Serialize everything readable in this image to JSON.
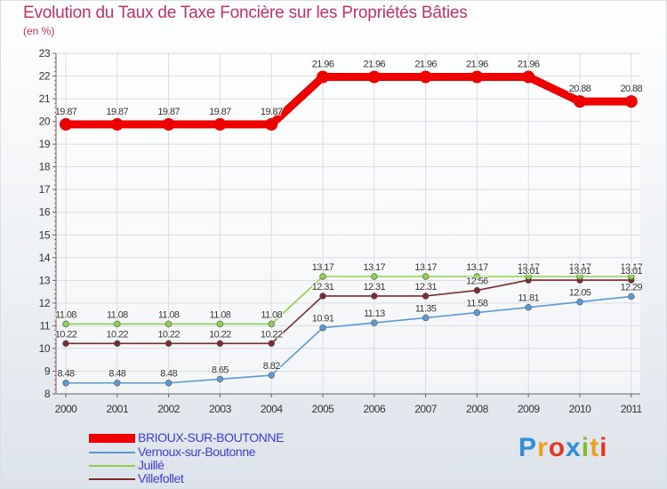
{
  "title": "Evolution du Taux de Taxe Foncière sur les Propriétés Bâties",
  "unit": "(en %)",
  "logo_text": "Proxiti",
  "colors": {
    "title": "#c0306a",
    "legend_text": "#3d3dd0",
    "axis": "#666666",
    "grid": "#d8dde3"
  },
  "chart_data": {
    "type": "line",
    "title": "Evolution du Taux de Taxe Foncière sur les Propriétés Bâties",
    "ylabel": "(en %)",
    "xlabel": "",
    "ylim": [
      8,
      23
    ],
    "yticks": [
      "8",
      "9",
      "10",
      "11",
      "12",
      "13",
      "14",
      "15",
      "16",
      "17",
      "18",
      "19",
      "20",
      "21",
      "22",
      "23"
    ],
    "categories": [
      "2000",
      "2001",
      "2002",
      "2003",
      "2004",
      "2005",
      "2006",
      "2007",
      "2008",
      "2009",
      "2010",
      "2011"
    ],
    "series": [
      {
        "name": "BRIOUX-SUR-BOUTONNE",
        "color": "#ee0000",
        "values": [
          19.87,
          19.87,
          19.87,
          19.87,
          19.87,
          21.96,
          21.96,
          21.96,
          21.96,
          21.96,
          20.88,
          20.88
        ],
        "labels": [
          "19.87",
          "19.87",
          "19.87",
          "19.87",
          "19.87",
          "21.96",
          "21.96",
          "21.96",
          "21.96",
          "21.96",
          "20.88",
          "20.88"
        ],
        "emphasis": true
      },
      {
        "name": "Vernoux-sur-Boutonne",
        "color": "#5b9bd5",
        "values": [
          8.48,
          8.48,
          8.48,
          8.65,
          8.82,
          10.91,
          11.13,
          11.35,
          11.58,
          11.81,
          12.05,
          12.29
        ],
        "labels": [
          "8.48",
          "8.48",
          "8.48",
          "8.65",
          "8.82",
          "10.91",
          "11.13",
          "11.35",
          "11.58",
          "11.81",
          "12.05",
          "12.29"
        ]
      },
      {
        "name": "Juillé",
        "color": "#8fd14f",
        "values": [
          11.08,
          11.08,
          11.08,
          11.08,
          11.08,
          13.17,
          13.17,
          13.17,
          13.17,
          13.17,
          13.17,
          13.17
        ],
        "labels": [
          "11.08",
          "11.08",
          "11.08",
          "11.08",
          "11.08",
          "13.17",
          "13.17",
          "13.17",
          "13.17",
          "13.17",
          "13.17",
          "13.17"
        ]
      },
      {
        "name": "Villefollet",
        "color": "#7a2b2b",
        "values": [
          10.22,
          10.22,
          10.22,
          10.22,
          10.22,
          12.31,
          12.31,
          12.31,
          12.56,
          13.01,
          13.01,
          13.01
        ],
        "labels": [
          "10.22",
          "10.22",
          "10.22",
          "10.22",
          "10.22",
          "12.31",
          "12.31",
          "12.31",
          "12.56",
          "13.01",
          "13.01",
          "13.01"
        ]
      }
    ],
    "legend_position": "bottom-left"
  }
}
